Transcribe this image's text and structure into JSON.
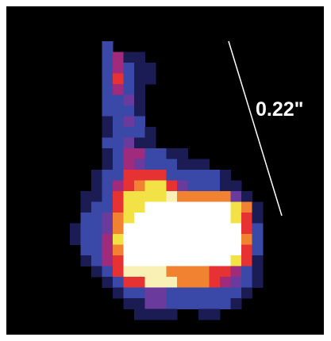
{
  "scale_label": "0.22\""
}
